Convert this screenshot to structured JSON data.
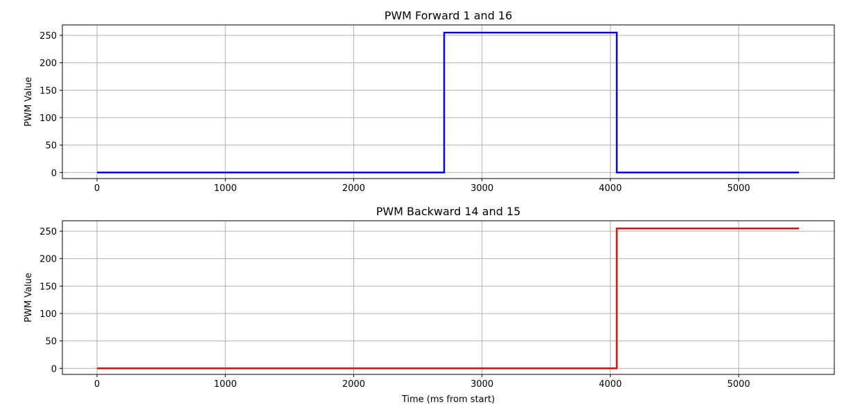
{
  "chart_data": [
    {
      "type": "line",
      "title": "PWM Forward 1 and 16",
      "xlabel": "",
      "ylabel": "PWM Value",
      "xlim": [
        -270,
        5745
      ],
      "ylim": [
        -11,
        269
      ],
      "xticks": [
        0,
        1000,
        2000,
        3000,
        4000,
        5000
      ],
      "yticks": [
        0,
        50,
        100,
        150,
        200,
        250
      ],
      "grid": true,
      "line_style": "step",
      "series": [
        {
          "color": "#0000ff",
          "x": [
            0,
            2705,
            2705,
            4050,
            4050,
            5470
          ],
          "y": [
            0,
            0,
            255,
            255,
            0,
            0
          ]
        }
      ]
    },
    {
      "type": "line",
      "title": "PWM Backward 14 and 15",
      "xlabel": "Time (ms from start)",
      "ylabel": "PWM Value",
      "xlim": [
        -270,
        5745
      ],
      "ylim": [
        -11,
        269
      ],
      "xticks": [
        0,
        1000,
        2000,
        3000,
        4000,
        5000
      ],
      "yticks": [
        0,
        50,
        100,
        150,
        200,
        250
      ],
      "grid": true,
      "line_style": "step",
      "series": [
        {
          "color": "#ff0000",
          "x": [
            0,
            4050,
            4050,
            5470
          ],
          "y": [
            0,
            0,
            255,
            255
          ]
        }
      ]
    }
  ]
}
